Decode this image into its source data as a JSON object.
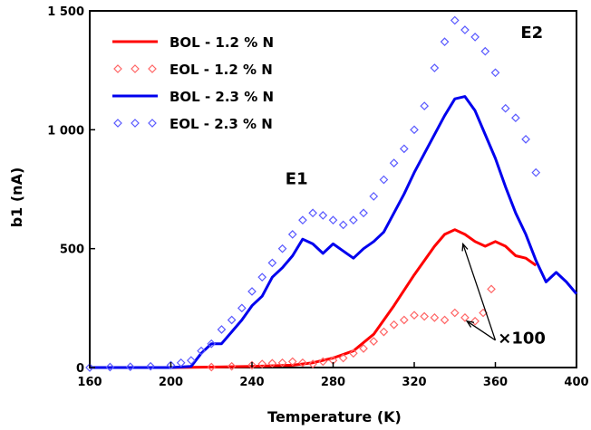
{
  "chart_data": {
    "type": "line",
    "title": "",
    "xlabel": "Temperature (K)",
    "ylabel": "b1 (nA)",
    "xlim": [
      160,
      400
    ],
    "ylim": [
      0,
      1500
    ],
    "x_ticks": [
      160,
      200,
      240,
      280,
      320,
      360,
      400
    ],
    "x_tick_labels": [
      "160",
      "200",
      "240",
      "280",
      "320",
      "360",
      "400"
    ],
    "y_ticks": [
      0,
      500,
      1000,
      1500
    ],
    "y_tick_labels": [
      "0",
      "500",
      "1 000",
      "1 500"
    ],
    "grid": false,
    "legend_position": "top-left",
    "series": [
      {
        "name": "BOL - 1.2 % N",
        "style": "line",
        "color": "#ff0000",
        "points": [
          [
            200,
            0
          ],
          [
            220,
            2
          ],
          [
            240,
            5
          ],
          [
            260,
            10
          ],
          [
            270,
            20
          ],
          [
            280,
            40
          ],
          [
            290,
            70
          ],
          [
            300,
            140
          ],
          [
            310,
            260
          ],
          [
            320,
            390
          ],
          [
            330,
            510
          ],
          [
            335,
            560
          ],
          [
            340,
            580
          ],
          [
            345,
            560
          ],
          [
            350,
            530
          ],
          [
            355,
            510
          ],
          [
            360,
            530
          ],
          [
            365,
            510
          ],
          [
            370,
            470
          ],
          [
            375,
            460
          ],
          [
            380,
            430
          ]
        ]
      },
      {
        "name": "EOL - 1.2 % N",
        "style": "markers",
        "marker": "diamond",
        "color": "#ff6666",
        "points": [
          [
            220,
            2
          ],
          [
            230,
            5
          ],
          [
            240,
            10
          ],
          [
            245,
            15
          ],
          [
            250,
            18
          ],
          [
            255,
            20
          ],
          [
            260,
            25
          ],
          [
            265,
            20
          ],
          [
            270,
            15
          ],
          [
            275,
            25
          ],
          [
            280,
            30
          ],
          [
            285,
            40
          ],
          [
            290,
            60
          ],
          [
            295,
            80
          ],
          [
            300,
            110
          ],
          [
            305,
            150
          ],
          [
            310,
            180
          ],
          [
            315,
            200
          ],
          [
            320,
            220
          ],
          [
            325,
            215
          ],
          [
            330,
            210
          ],
          [
            335,
            200
          ],
          [
            340,
            230
          ],
          [
            345,
            210
          ],
          [
            350,
            195
          ],
          [
            354,
            230
          ],
          [
            358,
            330
          ]
        ]
      },
      {
        "name": "BOL - 2.3 % N",
        "style": "line",
        "color": "#0000ee",
        "points": [
          [
            160,
            0
          ],
          [
            200,
            0
          ],
          [
            210,
            5
          ],
          [
            215,
            60
          ],
          [
            220,
            100
          ],
          [
            225,
            100
          ],
          [
            230,
            150
          ],
          [
            235,
            200
          ],
          [
            240,
            260
          ],
          [
            245,
            300
          ],
          [
            250,
            380
          ],
          [
            255,
            420
          ],
          [
            260,
            470
          ],
          [
            265,
            540
          ],
          [
            270,
            520
          ],
          [
            275,
            480
          ],
          [
            280,
            520
          ],
          [
            285,
            490
          ],
          [
            290,
            460
          ],
          [
            295,
            500
          ],
          [
            300,
            530
          ],
          [
            305,
            570
          ],
          [
            310,
            650
          ],
          [
            315,
            730
          ],
          [
            320,
            820
          ],
          [
            325,
            900
          ],
          [
            330,
            980
          ],
          [
            335,
            1060
          ],
          [
            340,
            1130
          ],
          [
            345,
            1140
          ],
          [
            350,
            1080
          ],
          [
            355,
            980
          ],
          [
            360,
            880
          ],
          [
            365,
            760
          ],
          [
            370,
            650
          ],
          [
            375,
            560
          ],
          [
            380,
            450
          ],
          [
            385,
            360
          ],
          [
            390,
            400
          ],
          [
            395,
            360
          ],
          [
            400,
            310
          ]
        ]
      },
      {
        "name": "EOL - 2.3 % N",
        "style": "markers",
        "marker": "diamond",
        "color": "#5a5aff",
        "points": [
          [
            160,
            0
          ],
          [
            170,
            2
          ],
          [
            180,
            3
          ],
          [
            190,
            5
          ],
          [
            200,
            10
          ],
          [
            205,
            20
          ],
          [
            210,
            30
          ],
          [
            215,
            70
          ],
          [
            220,
            100
          ],
          [
            225,
            160
          ],
          [
            230,
            200
          ],
          [
            235,
            250
          ],
          [
            240,
            320
          ],
          [
            245,
            380
          ],
          [
            250,
            440
          ],
          [
            255,
            500
          ],
          [
            260,
            560
          ],
          [
            265,
            620
          ],
          [
            270,
            650
          ],
          [
            275,
            640
          ],
          [
            280,
            620
          ],
          [
            285,
            600
          ],
          [
            290,
            620
          ],
          [
            295,
            650
          ],
          [
            300,
            720
          ],
          [
            305,
            790
          ],
          [
            310,
            860
          ],
          [
            315,
            920
          ],
          [
            320,
            1000
          ],
          [
            325,
            1100
          ],
          [
            330,
            1260
          ],
          [
            335,
            1370
          ],
          [
            340,
            1460
          ],
          [
            345,
            1420
          ],
          [
            350,
            1390
          ],
          [
            355,
            1330
          ],
          [
            360,
            1240
          ],
          [
            365,
            1090
          ],
          [
            370,
            1050
          ],
          [
            375,
            960
          ],
          [
            380,
            820
          ]
        ]
      }
    ],
    "annotations": [
      {
        "text": "E1",
        "x": 262,
        "y": 770
      },
      {
        "text": "E2",
        "x": 378,
        "y": 1385
      },
      {
        "text": "×100",
        "x": 373,
        "y": 100
      }
    ]
  }
}
